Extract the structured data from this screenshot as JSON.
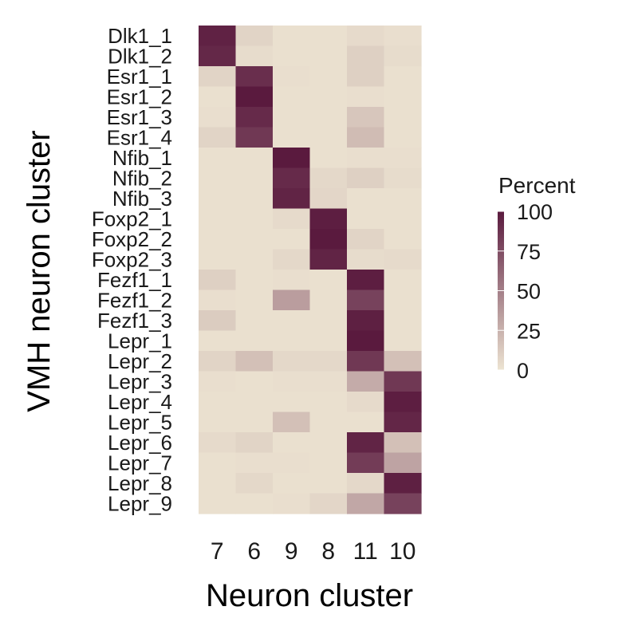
{
  "chart_data": {
    "type": "heatmap",
    "xlabel": "Neuron cluster",
    "ylabel": "VMH neuron cluster",
    "columns": [
      "7",
      "6",
      "9",
      "8",
      "11",
      "10"
    ],
    "rows": [
      "Dlk1_1",
      "Dlk1_2",
      "Esr1_1",
      "Esr1_2",
      "Esr1_3",
      "Esr1_4",
      "Nfib_1",
      "Nfib_2",
      "Nfib_3",
      "Foxp2_1",
      "Foxp2_2",
      "Foxp2_3",
      "Fezf1_1",
      "Fezf1_2",
      "Fezf1_3",
      "Lepr_1",
      "Lepr_2",
      "Lepr_3",
      "Lepr_4",
      "Lepr_5",
      "Lepr_6",
      "Lepr_7",
      "Lepr_8",
      "Lepr_9"
    ],
    "values": [
      [
        96,
        8,
        2,
        2,
        5,
        3
      ],
      [
        93,
        4,
        2,
        2,
        10,
        4
      ],
      [
        8,
        90,
        3,
        2,
        10,
        2
      ],
      [
        2,
        100,
        2,
        2,
        3,
        2
      ],
      [
        3,
        92,
        2,
        2,
        15,
        2
      ],
      [
        8,
        85,
        2,
        2,
        20,
        2
      ],
      [
        2,
        2,
        100,
        2,
        3,
        3
      ],
      [
        2,
        2,
        92,
        6,
        10,
        4
      ],
      [
        2,
        2,
        95,
        7,
        2,
        2
      ],
      [
        2,
        2,
        5,
        98,
        2,
        2
      ],
      [
        2,
        2,
        2,
        100,
        8,
        2
      ],
      [
        2,
        2,
        6,
        95,
        4,
        5
      ],
      [
        10,
        2,
        3,
        2,
        98,
        2
      ],
      [
        3,
        2,
        35,
        2,
        80,
        2
      ],
      [
        12,
        2,
        2,
        2,
        97,
        2
      ],
      [
        2,
        2,
        2,
        2,
        100,
        2
      ],
      [
        8,
        18,
        6,
        6,
        85,
        18
      ],
      [
        3,
        2,
        3,
        3,
        28,
        85
      ],
      [
        2,
        2,
        2,
        2,
        5,
        98
      ],
      [
        2,
        2,
        18,
        2,
        2,
        94
      ],
      [
        5,
        8,
        2,
        2,
        95,
        18
      ],
      [
        2,
        3,
        3,
        2,
        83,
        32
      ],
      [
        2,
        6,
        2,
        2,
        6,
        97
      ],
      [
        2,
        2,
        3,
        7,
        30,
        80
      ]
    ],
    "legend": {
      "title": "Percent",
      "ticks": [
        100,
        75,
        50,
        25,
        0
      ],
      "range": [
        0,
        100
      ],
      "low_color": "#ede4d2",
      "high_color": "#5a1a3e"
    }
  }
}
